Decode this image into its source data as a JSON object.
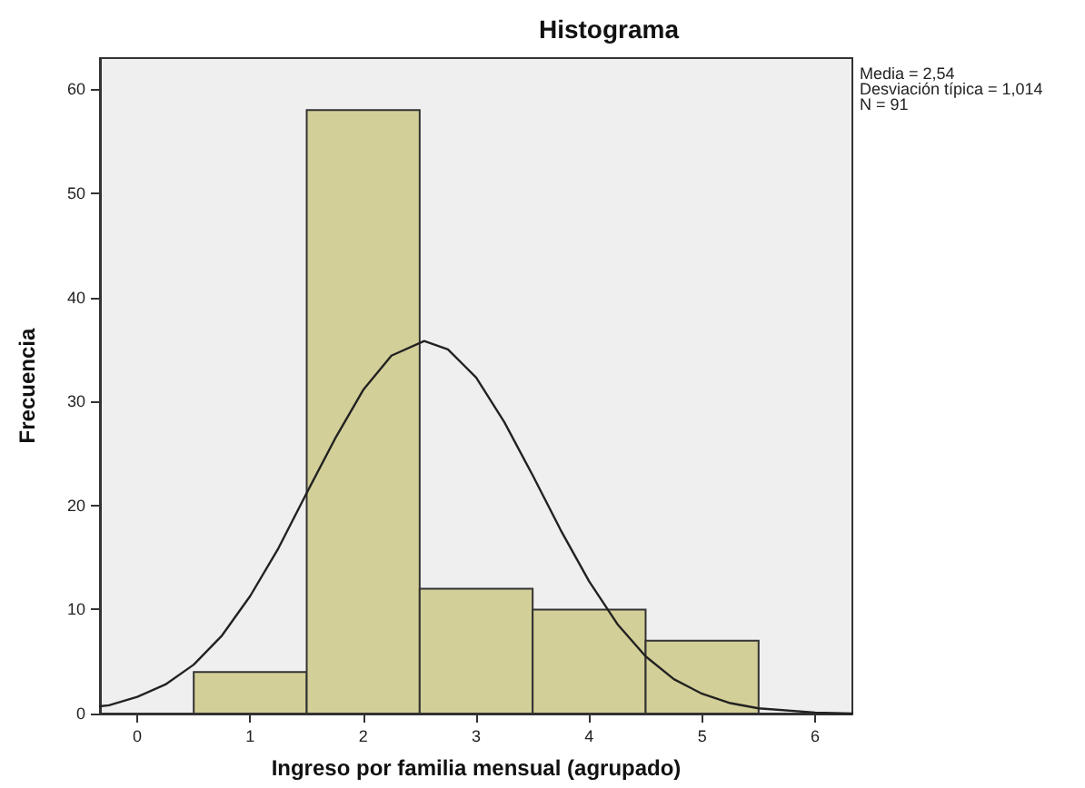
{
  "chart_data": {
    "type": "histogram",
    "title": "Histograma",
    "xlabel": "Ingreso por familia mensual (agrupado)",
    "ylabel": "Frecuencia",
    "bins": [
      0.5,
      1.5,
      2.5,
      3.5,
      4.5,
      5.5
    ],
    "values": [
      4,
      58,
      12,
      10,
      7
    ],
    "color": "#d3cf98",
    "series": [
      {
        "type": "line",
        "color": "#222222",
        "x": [
          -0.33,
          -0.25,
          0,
          0.25,
          0.5,
          0.75,
          1,
          1.25,
          1.5,
          1.75,
          2,
          2.25,
          2.54,
          2.75,
          3,
          3.25,
          3.5,
          3.75,
          4,
          4.25,
          4.5,
          4.75,
          5,
          5.25,
          5.5,
          6,
          6.33
        ],
        "values": [
          0.7,
          0.8,
          1.6,
          2.8,
          4.7,
          7.5,
          11.3,
          15.9,
          21.2,
          26.4,
          31.1,
          34.4,
          35.8,
          35.0,
          32.3,
          28.0,
          22.9,
          17.6,
          12.7,
          8.6,
          5.5,
          3.3,
          1.9,
          1.0,
          0.5,
          0.1,
          0
        ]
      }
    ],
    "xlim": [
      -0.33,
      6.33
    ],
    "xticks": [
      0,
      1,
      2,
      3,
      4,
      5,
      6
    ],
    "ylim": [
      0,
      63
    ],
    "yticks": [
      0,
      10,
      20,
      30,
      40,
      50,
      60
    ],
    "grid": false,
    "legend": false,
    "marker": "none",
    "line_style": "solid",
    "annotations": [
      "Media = 2,54",
      "Desviación típica = 1,014",
      "N = 91"
    ]
  }
}
